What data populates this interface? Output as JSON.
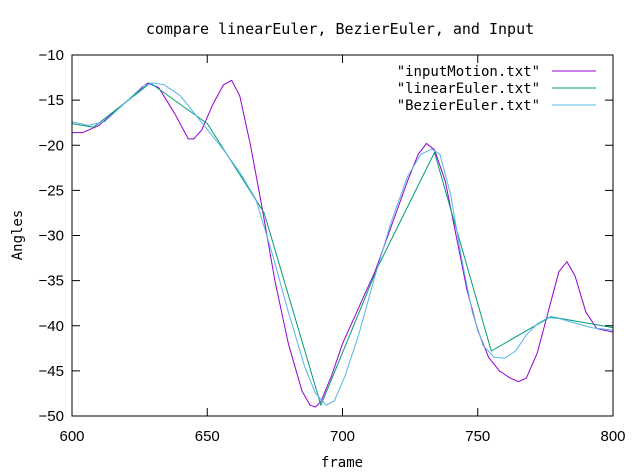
{
  "chart_data": {
    "type": "line",
    "title": "compare linearEuler, BezierEuler, and Input",
    "xlabel": "frame",
    "ylabel": "Angles",
    "xlim": [
      600,
      800
    ],
    "ylim": [
      -50,
      -10
    ],
    "xticks": [
      600,
      650,
      700,
      750,
      800
    ],
    "yticks": [
      -10,
      -15,
      -20,
      -25,
      -30,
      -35,
      -40,
      -45,
      -50
    ],
    "grid": false,
    "legend_position": "top-right",
    "series": [
      {
        "name": "\"inputMotion.txt\"",
        "color": "#9400d3",
        "points": [
          [
            600,
            -18.6
          ],
          [
            604,
            -18.6
          ],
          [
            610,
            -17.8
          ],
          [
            620,
            -15.2
          ],
          [
            628,
            -13.1
          ],
          [
            632,
            -13.6
          ],
          [
            638,
            -16.5
          ],
          [
            643,
            -19.3
          ],
          [
            645,
            -19.3
          ],
          [
            648,
            -18.3
          ],
          [
            652,
            -15.5
          ],
          [
            656,
            -13.3
          ],
          [
            659,
            -12.8
          ],
          [
            662,
            -14.5
          ],
          [
            666,
            -20.0
          ],
          [
            670,
            -26.5
          ],
          [
            675,
            -35.0
          ],
          [
            680,
            -42.0
          ],
          [
            685,
            -47.2
          ],
          [
            688,
            -48.8
          ],
          [
            690,
            -49.0
          ],
          [
            692,
            -48.4
          ],
          [
            696,
            -45.5
          ],
          [
            700,
            -42.0
          ],
          [
            706,
            -38.0
          ],
          [
            712,
            -34.0
          ],
          [
            718,
            -29.0
          ],
          [
            724,
            -24.0
          ],
          [
            728,
            -21.0
          ],
          [
            731,
            -19.8
          ],
          [
            734,
            -20.5
          ],
          [
            738,
            -24.0
          ],
          [
            742,
            -30.0
          ],
          [
            746,
            -36.0
          ],
          [
            750,
            -40.5
          ],
          [
            754,
            -43.5
          ],
          [
            758,
            -45.0
          ],
          [
            762,
            -45.8
          ],
          [
            765,
            -46.2
          ],
          [
            768,
            -45.8
          ],
          [
            772,
            -43.0
          ],
          [
            776,
            -38.5
          ],
          [
            780,
            -34.0
          ],
          [
            783,
            -32.9
          ],
          [
            786,
            -34.5
          ],
          [
            790,
            -38.5
          ],
          [
            794,
            -40.3
          ],
          [
            800,
            -40.7
          ]
        ]
      },
      {
        "name": "\"linearEuler.txt\"",
        "color": "#009e73",
        "points": [
          [
            600,
            -17.6
          ],
          [
            608,
            -18.0
          ],
          [
            629,
            -13.1
          ],
          [
            650,
            -17.6
          ],
          [
            671,
            -27.5
          ],
          [
            692,
            -48.8
          ],
          [
            713,
            -33.5
          ],
          [
            734,
            -20.8
          ],
          [
            755,
            -42.8
          ],
          [
            777,
            -39.0
          ],
          [
            800,
            -40.2
          ]
        ]
      },
      {
        "name": "\"BezierEuler.txt\"",
        "color": "#56b4e9",
        "points": [
          [
            600,
            -17.4
          ],
          [
            606,
            -17.8
          ],
          [
            612,
            -17.4
          ],
          [
            620,
            -15.2
          ],
          [
            626,
            -13.5
          ],
          [
            630,
            -13.1
          ],
          [
            634,
            -13.3
          ],
          [
            640,
            -14.5
          ],
          [
            648,
            -17.5
          ],
          [
            656,
            -20.5
          ],
          [
            662,
            -23.0
          ],
          [
            668,
            -26.0
          ],
          [
            674,
            -32.0
          ],
          [
            680,
            -38.5
          ],
          [
            686,
            -44.5
          ],
          [
            690,
            -47.5
          ],
          [
            694,
            -48.8
          ],
          [
            697,
            -48.3
          ],
          [
            701,
            -45.5
          ],
          [
            706,
            -41.0
          ],
          [
            712,
            -34.5
          ],
          [
            718,
            -28.5
          ],
          [
            724,
            -23.5
          ],
          [
            729,
            -21.0
          ],
          [
            733,
            -20.4
          ],
          [
            736,
            -21.0
          ],
          [
            740,
            -25.5
          ],
          [
            744,
            -32.5
          ],
          [
            748,
            -38.5
          ],
          [
            752,
            -42.2
          ],
          [
            756,
            -43.5
          ],
          [
            760,
            -43.6
          ],
          [
            764,
            -42.8
          ],
          [
            768,
            -41.0
          ],
          [
            772,
            -39.8
          ],
          [
            776,
            -39.1
          ],
          [
            780,
            -39.2
          ],
          [
            786,
            -39.7
          ],
          [
            792,
            -40.2
          ],
          [
            800,
            -40.5
          ]
        ]
      }
    ]
  }
}
